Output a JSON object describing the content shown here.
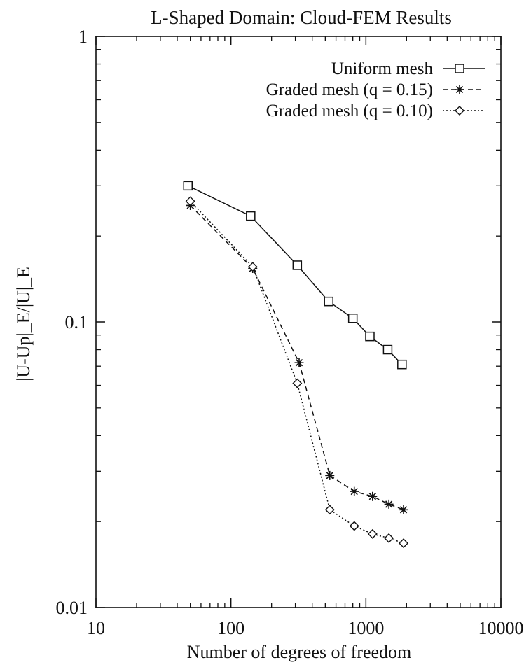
{
  "chart_data": {
    "type": "line",
    "title": "L-Shaped Domain: Cloud-FEM Results",
    "xlabel": "Number of degrees of freedom",
    "ylabel": "|U-Up|_E/|U|_E",
    "xscale": "log",
    "yscale": "log",
    "xlim": [
      10,
      10000
    ],
    "ylim": [
      0.01,
      1
    ],
    "x_ticks": [
      {
        "value": 10,
        "label": "10"
      },
      {
        "value": 100,
        "label": "100"
      },
      {
        "value": 1000,
        "label": "1000"
      },
      {
        "value": 10000,
        "label": "10000"
      }
    ],
    "y_ticks": [
      {
        "value": 0.01,
        "label": "0.01"
      },
      {
        "value": 0.1,
        "label": "0.1"
      },
      {
        "value": 1,
        "label": "1"
      }
    ],
    "grid": false,
    "legend_position": "top-right",
    "series": [
      {
        "name": "Uniform mesh",
        "marker": "square",
        "line_style": "solid",
        "x": [
          48,
          140,
          310,
          530,
          800,
          1070,
          1450,
          1850
        ],
        "y": [
          0.3,
          0.235,
          0.158,
          0.118,
          0.103,
          0.089,
          0.08,
          0.071
        ]
      },
      {
        "name": "Graded mesh (q = 0.15)",
        "marker": "asterisk",
        "line_style": "dashed",
        "x": [
          50,
          145,
          320,
          540,
          820,
          1120,
          1480,
          1900
        ],
        "y": [
          0.256,
          0.154,
          0.072,
          0.029,
          0.0255,
          0.0245,
          0.023,
          0.022
        ]
      },
      {
        "name": "Graded mesh (q = 0.10)",
        "marker": "diamond",
        "line_style": "dotted",
        "x": [
          50,
          145,
          310,
          540,
          820,
          1120,
          1480,
          1900
        ],
        "y": [
          0.265,
          0.156,
          0.061,
          0.022,
          0.0193,
          0.0181,
          0.0175,
          0.0168
        ]
      }
    ]
  }
}
